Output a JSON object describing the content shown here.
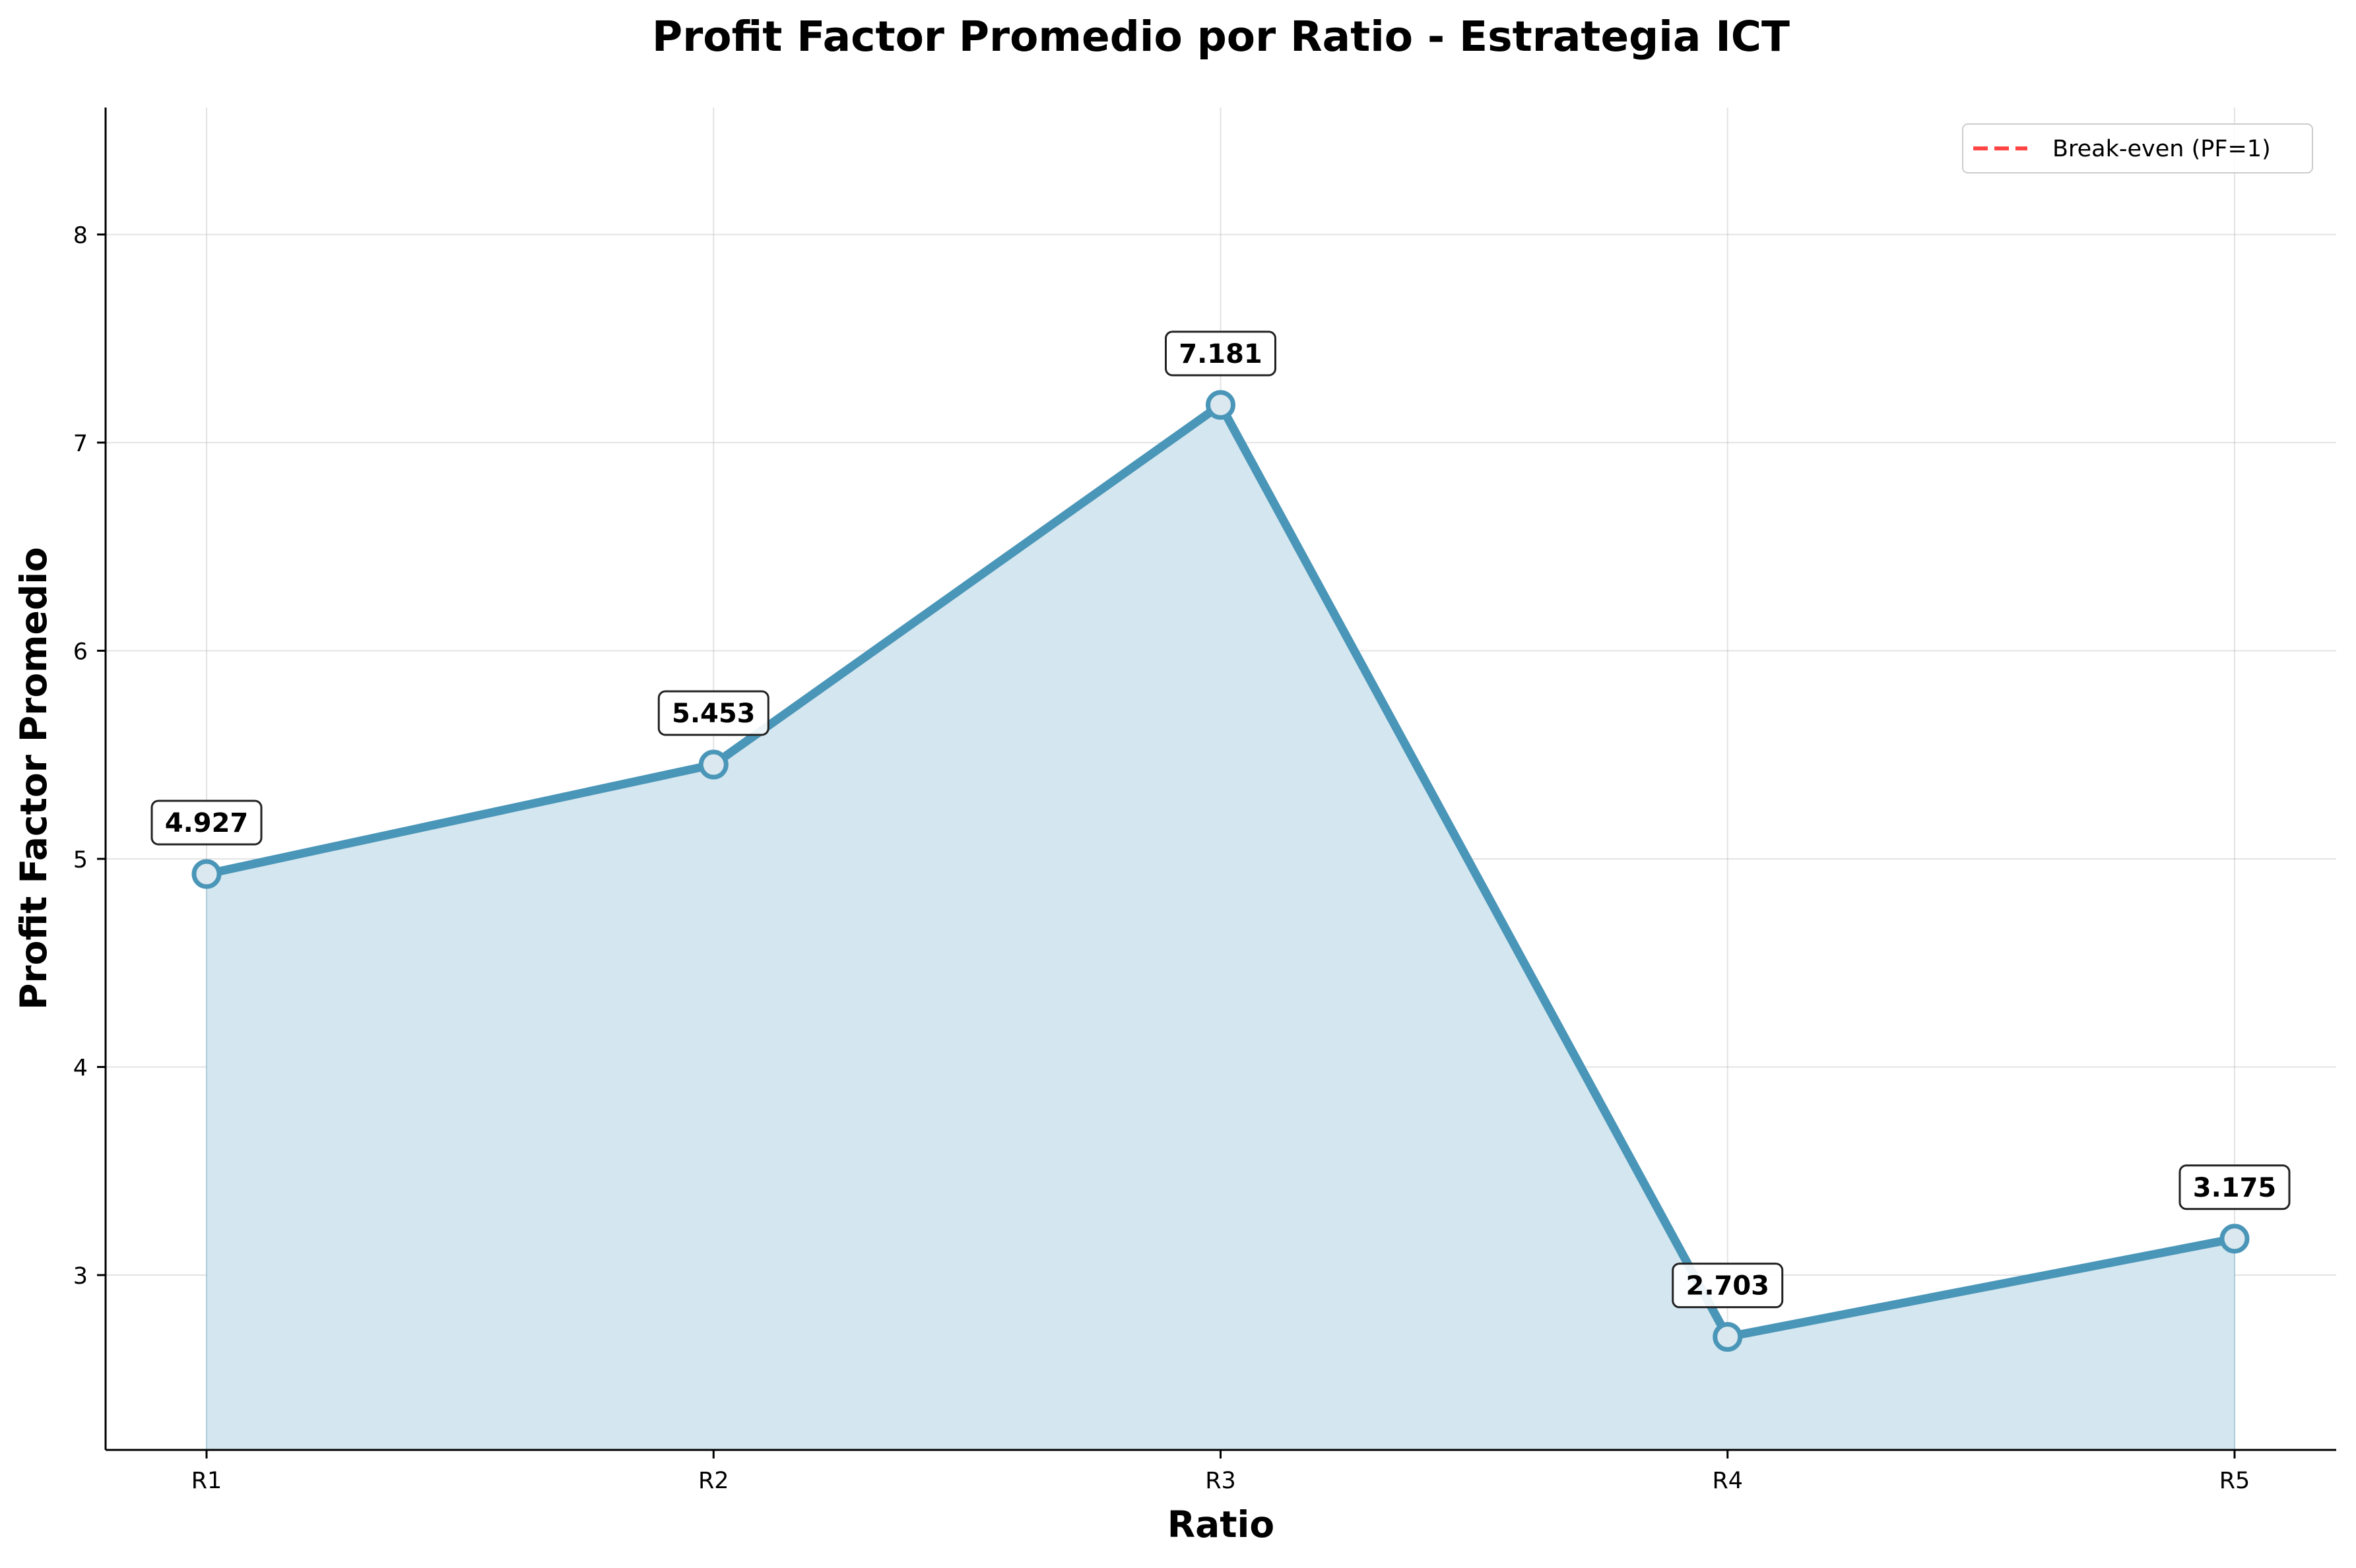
{
  "chart_data": {
    "type": "line",
    "title": "Profit Factor Promedio por Ratio - Estrategia ICT",
    "xlabel": "Ratio",
    "ylabel": "Profit Factor Promedio",
    "categories": [
      "R1",
      "R2",
      "R3",
      "R4",
      "R5"
    ],
    "series": [
      {
        "values": [
          4.927,
          5.453,
          7.181,
          2.703,
          3.175
        ],
        "color": "#4a96b8",
        "fill_color": "#d4e6ef",
        "marker_face": "#dbe8ef",
        "area_fill": true
      }
    ],
    "data_labels": [
      "4.927",
      "5.453",
      "7.181",
      "2.703",
      "3.175"
    ],
    "yticks": [
      3,
      4,
      5,
      6,
      7,
      8
    ],
    "ylim": [
      2.16,
      8.61
    ],
    "grid": true,
    "legend": {
      "position": "top-right",
      "entries": [
        {
          "label": "Break-even (PF=1)",
          "color": "#ff4444",
          "style": "dashed"
        }
      ]
    }
  }
}
